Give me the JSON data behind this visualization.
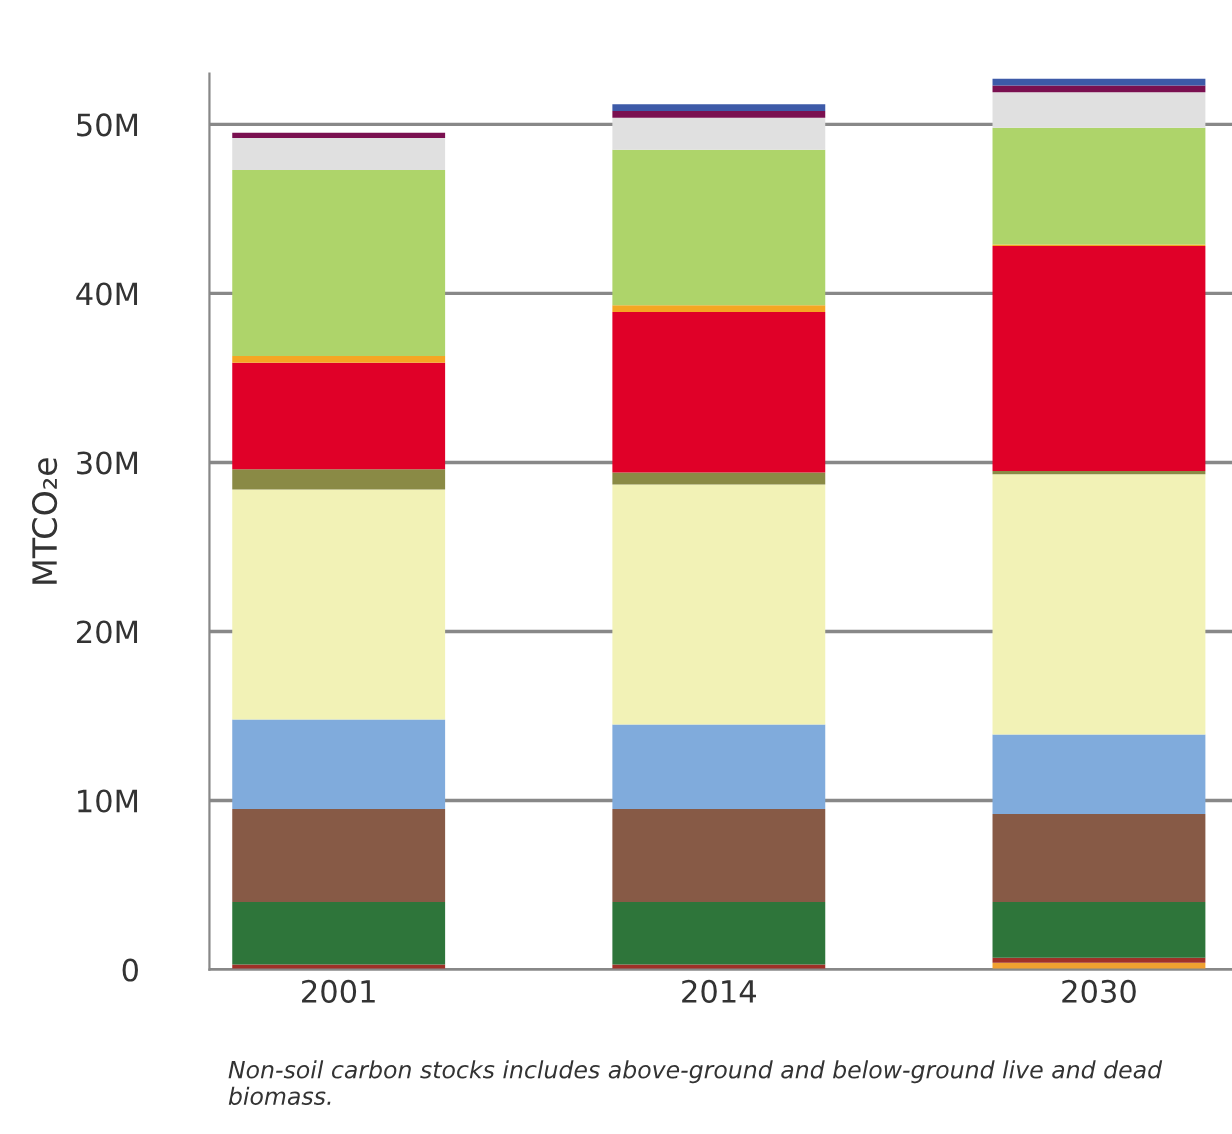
{
  "chart_data": {
    "type": "bar",
    "stacked": true,
    "ylabel": "MTCO₂e",
    "categories": [
      "2001",
      "2014",
      "2030"
    ],
    "series": [
      {
        "color": "#f0a030",
        "values": [
          0,
          0,
          0.4
        ]
      },
      {
        "color": "#a03028",
        "values": [
          0.3,
          0.3,
          0.3
        ]
      },
      {
        "color": "#2e753a",
        "values": [
          3.7,
          3.7,
          3.3
        ]
      },
      {
        "color": "#875a46",
        "values": [
          5.5,
          5.5,
          5.2
        ]
      },
      {
        "color": "#80abdc",
        "values": [
          5.3,
          5.0,
          4.7
        ]
      },
      {
        "color": "#f2f2b6",
        "values": [
          13.6,
          14.2,
          15.4
        ]
      },
      {
        "color": "#8a8a45",
        "values": [
          1.2,
          0.7,
          0.2
        ]
      },
      {
        "color": "#e00028",
        "values": [
          6.3,
          9.5,
          13.3
        ]
      },
      {
        "color": "#f5a623",
        "values": [
          0.4,
          0.4,
          0.1
        ]
      },
      {
        "color": "#aed46a",
        "values": [
          11.0,
          9.2,
          6.9
        ]
      },
      {
        "color": "#e0e0e0",
        "values": [
          1.9,
          1.9,
          2.1
        ]
      },
      {
        "color": "#7a1050",
        "values": [
          0.3,
          0.4,
          0.4
        ]
      },
      {
        "color": "#3d5aa8",
        "values": [
          0,
          0.4,
          0.4
        ]
      }
    ],
    "ylim": [
      0,
      53
    ],
    "yticks": [
      0,
      {
        "value": 10,
        "label": "10M"
      },
      {
        "value": 20,
        "label": "20M"
      },
      {
        "value": 30,
        "label": "30M"
      },
      {
        "value": 40,
        "label": "40M"
      },
      {
        "value": 50,
        "label": "50M"
      }
    ],
    "grid": "y",
    "annotations": [
      "Non-soil carbon stocks includes above-ground and below-ground live and dead biomass."
    ]
  }
}
